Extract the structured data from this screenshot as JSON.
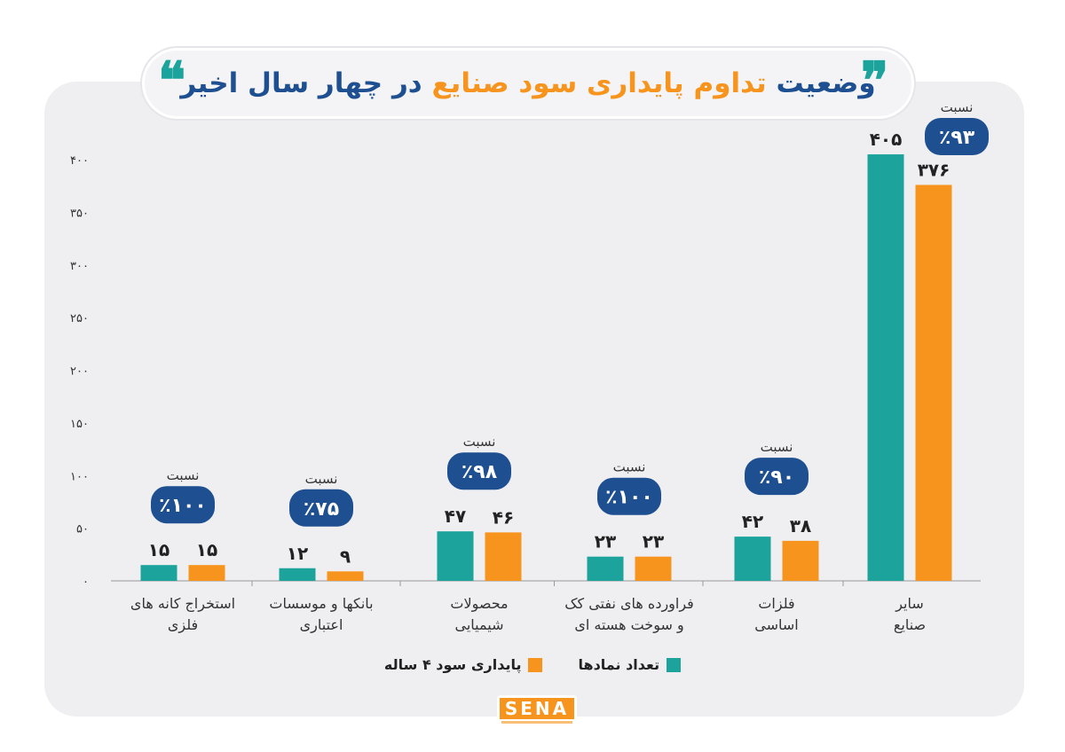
{
  "title": {
    "part1": "وضعیت",
    "highlight": "تداوم پایداری سود صنایع",
    "part2": "در چهار سال اخیر"
  },
  "colors": {
    "teal": "#1ba39c",
    "orange": "#f7941d",
    "navy": "#1d4f91"
  },
  "legend": {
    "count_label": "تعداد نمادها",
    "stable_label": "پایداری سود ۴ ساله"
  },
  "logo": {
    "text": "SENA"
  },
  "chart_data": {
    "type": "bar",
    "categories": [
      [
        "استخراج کانه های",
        "فلزی"
      ],
      [
        "بانکها و موسسات",
        "اعتباری"
      ],
      [
        "محصولات",
        "شیمیایی"
      ],
      [
        "فراورده های نفتی کک",
        "و سوخت هسته ای"
      ],
      [
        "فلزات",
        "اساسی"
      ],
      [
        "سایر",
        "صنایع"
      ]
    ],
    "series": [
      {
        "name": "تعداد نمادها",
        "color": "#1ba39c",
        "values": [
          15,
          12,
          47,
          23,
          42,
          405
        ],
        "labels": [
          "۱۵",
          "۱۲",
          "۴۷",
          "۲۳",
          "۴۲",
          "۴۰۵"
        ]
      },
      {
        "name": "پایداری سود ۴ ساله",
        "color": "#f7941d",
        "values": [
          15,
          9,
          46,
          23,
          38,
          376
        ],
        "labels": [
          "۱۵",
          "۹",
          "۴۶",
          "۲۳",
          "۳۸",
          "۳۷۶"
        ]
      }
    ],
    "ratio_caption": "نسبت",
    "ratios": [
      "٪۱۰۰",
      "٪۷۵",
      "٪۹۸",
      "٪۱۰۰",
      "٪۹۰",
      "٪۹۳"
    ],
    "ylim": [
      0,
      400
    ],
    "yticks": [
      0,
      50,
      100,
      150,
      200,
      250,
      300,
      350,
      400
    ],
    "ytick_labels": [
      "۰",
      "۵۰",
      "۱۰۰",
      "۱۵۰",
      "۲۰۰",
      "۲۵۰",
      "۳۰۰",
      "۳۵۰",
      "۴۰۰"
    ],
    "grid": false,
    "legend_position": "bottom"
  }
}
